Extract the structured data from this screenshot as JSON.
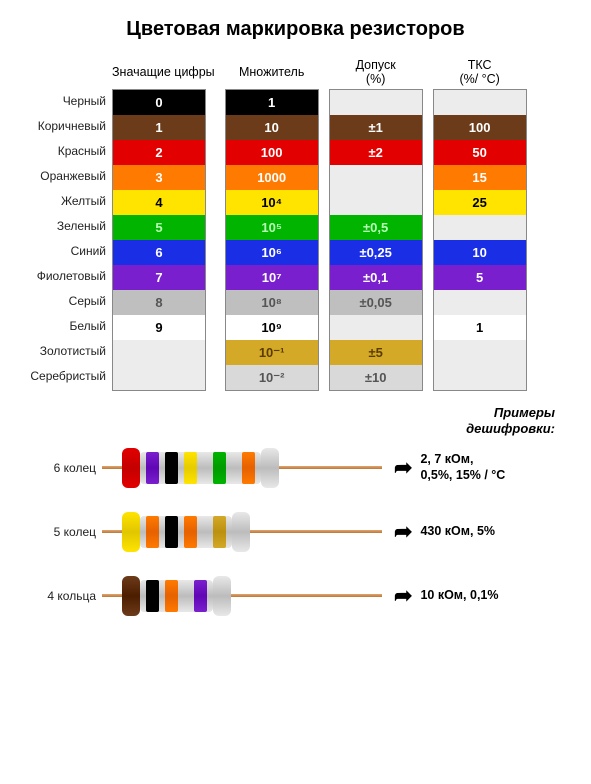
{
  "title": "Цветовая маркировка резисторов",
  "column_headers": [
    "Значащие цифры",
    "Множитель",
    "Допуск (%)",
    "ТКС (%/ °С)"
  ],
  "rows": [
    {
      "name": "Черный",
      "bg": "#000000",
      "fg": "#ffffff",
      "digit": "0",
      "mult": "1",
      "tol": "",
      "tcs": ""
    },
    {
      "name": "Коричневый",
      "bg": "#6b3b1a",
      "fg": "#ffffff",
      "digit": "1",
      "mult": "10",
      "tol": "±1",
      "tcs": "100"
    },
    {
      "name": "Красный",
      "bg": "#e20000",
      "fg": "#ffffff",
      "digit": "2",
      "mult": "100",
      "tol": "±2",
      "tcs": "50"
    },
    {
      "name": "Оранжевый",
      "bg": "#ff7a00",
      "fg": "#ffffff",
      "digit": "3",
      "mult": "1000",
      "tol": "",
      "tcs": "15"
    },
    {
      "name": "Желтый",
      "bg": "#ffe400",
      "fg": "#000000",
      "digit": "4",
      "mult": "10⁴",
      "tol": "",
      "tcs": "25"
    },
    {
      "name": "Зеленый",
      "bg": "#00b400",
      "fg": "#b7ffb7",
      "digit": "5",
      "mult": "10⁵",
      "tol": "±0,5",
      "tcs": ""
    },
    {
      "name": "Синий",
      "bg": "#1a2ee6",
      "fg": "#ffffff",
      "digit": "6",
      "mult": "10⁶",
      "tol": "±0,25",
      "tcs": "10"
    },
    {
      "name": "Фиолетовый",
      "bg": "#7a1fce",
      "fg": "#ffffff",
      "digit": "7",
      "mult": "10⁷",
      "tol": "±0,1",
      "tcs": "5"
    },
    {
      "name": "Серый",
      "bg": "#bfbfbf",
      "fg": "#555555",
      "digit": "8",
      "mult": "10⁸",
      "tol": "±0,05",
      "tcs": ""
    },
    {
      "name": "Белый",
      "bg": "#ffffff",
      "fg": "#000000",
      "digit": "9",
      "mult": "10⁹",
      "tol": "",
      "tcs": "1"
    },
    {
      "name": "Золотистый",
      "bg": "#d4a928",
      "fg": "#5a3c00",
      "digit": "",
      "mult": "10⁻¹",
      "tol": "±5",
      "tcs": ""
    },
    {
      "name": "Серебристый",
      "bg": "#d9d9d9",
      "fg": "#555555",
      "digit": "",
      "mult": "10⁻²",
      "tol": "±10",
      "tcs": ""
    }
  ],
  "examples_title_l1": "Примеры",
  "examples_title_l2": "дешифровки:",
  "examples": [
    {
      "label": "6 колец",
      "cap": "#e20000",
      "bands": [
        "#7a1fce",
        "#000000",
        "#ffe400",
        "#00b400",
        "#ff7a00"
      ],
      "value_l1": "2, 7 кОм,",
      "value_l2": "0,5%, 15% / °С"
    },
    {
      "label": "5 колец",
      "cap": "#ffe400",
      "bands": [
        "#ff7a00",
        "#000000",
        "#ff7a00",
        "#d4a928"
      ],
      "value_l1": "430 кОм, 5%",
      "value_l2": ""
    },
    {
      "label": "4 кольца",
      "cap": "#6b3b1a",
      "bands": [
        "#000000",
        "#ff7a00",
        "#7a1fce"
      ],
      "value_l1": "10 кОм, 0,1%",
      "value_l2": ""
    }
  ],
  "connector_color": "#6a6a6a"
}
